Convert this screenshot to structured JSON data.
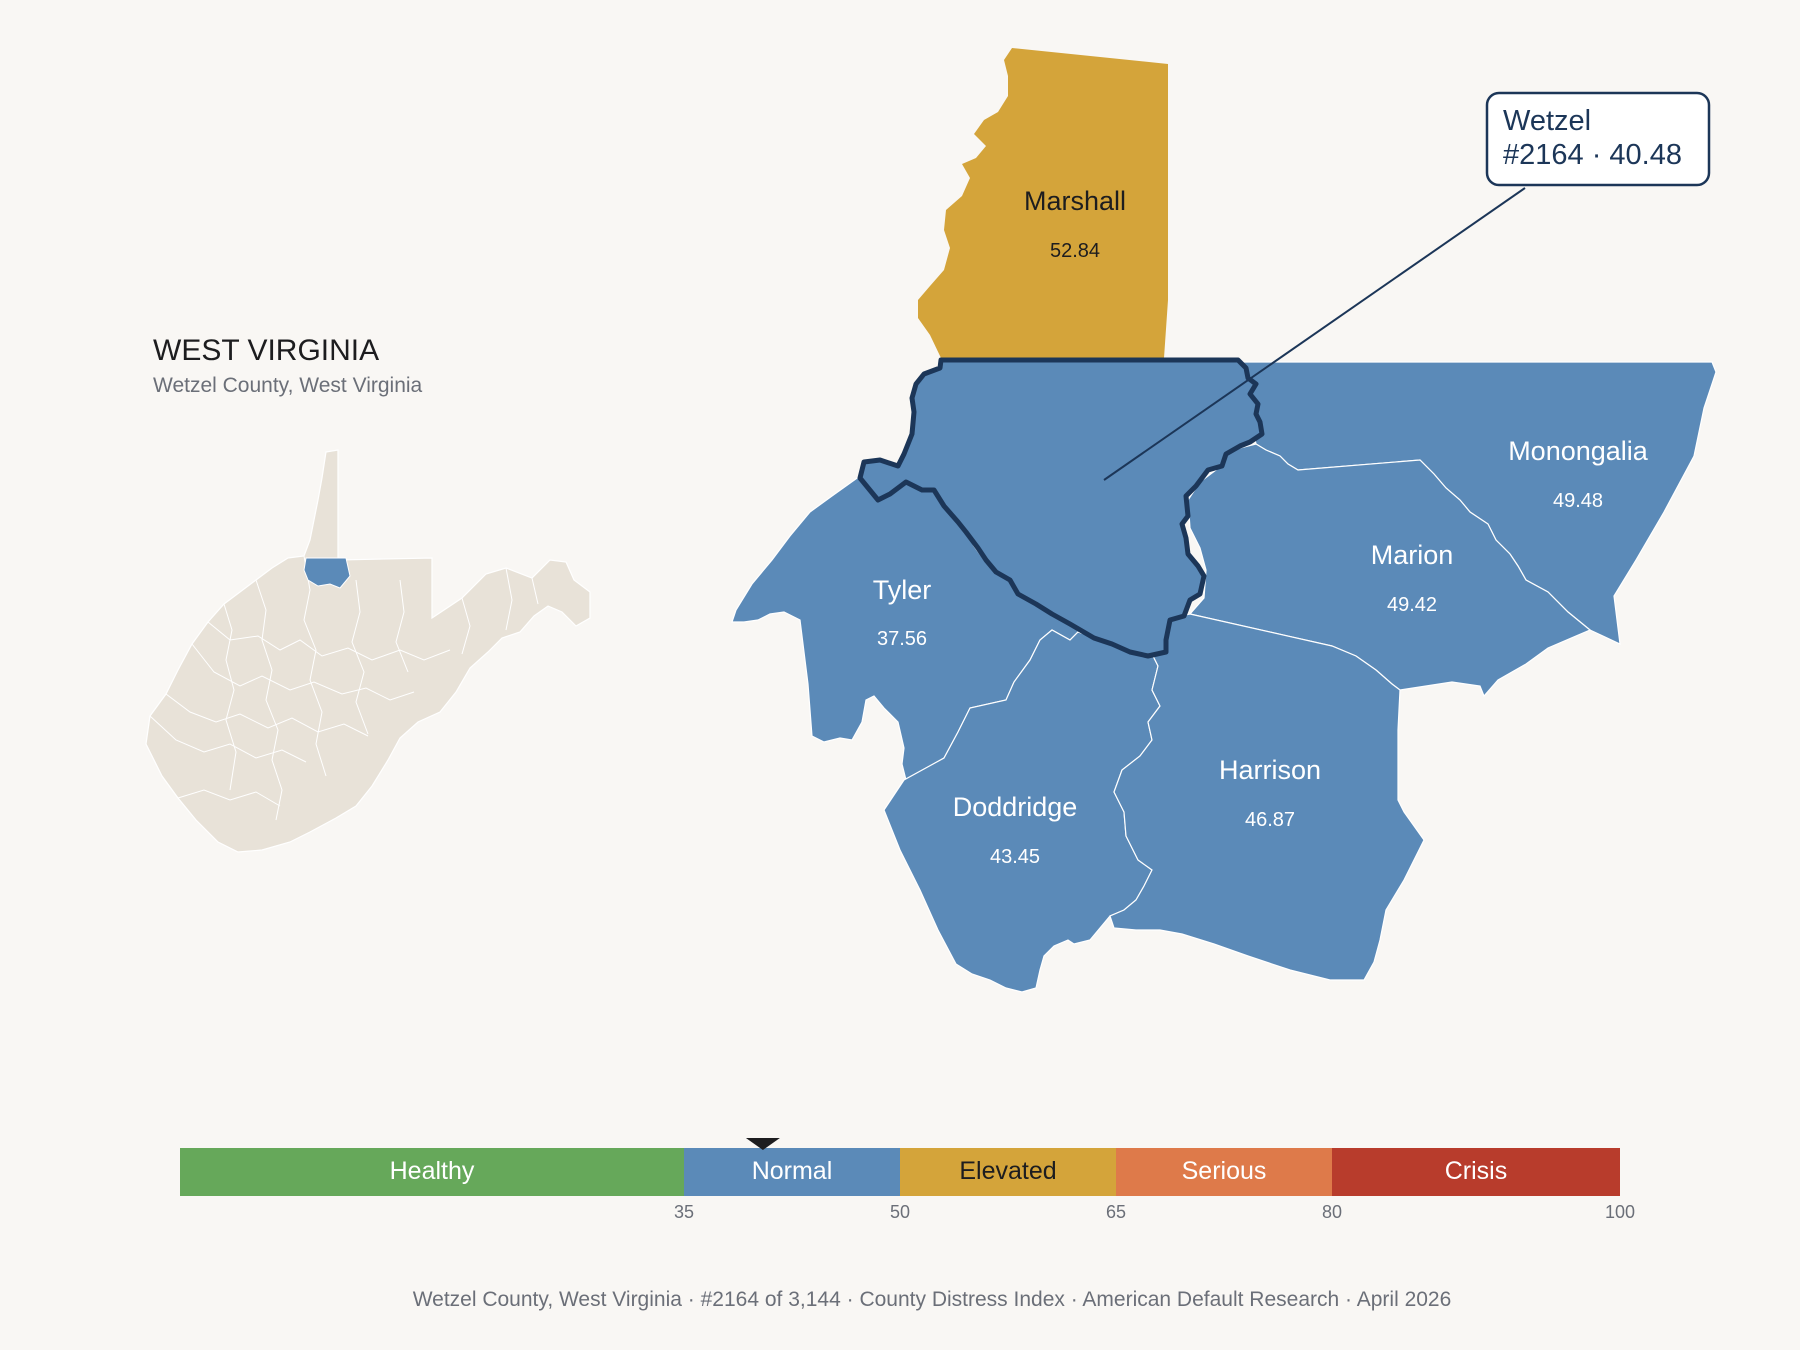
{
  "header": {
    "state_title": "WEST VIRGINIA",
    "subtitle": "Wetzel County, West Virginia"
  },
  "colors": {
    "background": "#f9f7f4",
    "healthy": "#66a85a",
    "normal": "#5b8ab8",
    "elevated": "#d4a43a",
    "serious": "#de7a4a",
    "crisis": "#b83c2c",
    "inset_fill": "#e8e2d8",
    "focus_outline": "#1c3658",
    "text_dark": "#1d1d1f",
    "text_muted": "#6b6f78"
  },
  "focus": {
    "name": "Wetzel",
    "rank": "#2164",
    "score": "40.48",
    "callout_line1": "Wetzel",
    "callout_line2": "#2164 · 40.48"
  },
  "counties": [
    {
      "id": "marshall",
      "name": "Marshall",
      "value": "52.84",
      "category": "Elevated"
    },
    {
      "id": "tyler",
      "name": "Tyler",
      "value": "37.56",
      "category": "Normal"
    },
    {
      "id": "monongalia",
      "name": "Monongalia",
      "value": "49.48",
      "category": "Normal"
    },
    {
      "id": "marion",
      "name": "Marion",
      "value": "49.42",
      "category": "Normal"
    },
    {
      "id": "doddridge",
      "name": "Doddridge",
      "value": "43.45",
      "category": "Normal"
    },
    {
      "id": "harrison",
      "name": "Harrison",
      "value": "46.87",
      "category": "Normal"
    }
  ],
  "scale": {
    "min": 0,
    "max": 100,
    "marker_value": 40.48,
    "segments": [
      {
        "label": "Healthy",
        "from": 0,
        "to": 35,
        "color": "#66a85a"
      },
      {
        "label": "Normal",
        "from": 35,
        "to": 50,
        "color": "#5b8ab8"
      },
      {
        "label": "Elevated",
        "from": 50,
        "to": 65,
        "color": "#d4a43a"
      },
      {
        "label": "Serious",
        "from": 65,
        "to": 80,
        "color": "#de7a4a"
      },
      {
        "label": "Crisis",
        "from": 80,
        "to": 100,
        "color": "#b83c2c"
      }
    ],
    "ticks": [
      "35",
      "50",
      "65",
      "80",
      "100"
    ]
  },
  "footer": {
    "county": "Wetzel County, West Virginia",
    "rank": "#2164 of 3,144",
    "index": "County Distress Index",
    "source": "American Default Research",
    "date": "April 2026",
    "separator": "·"
  }
}
